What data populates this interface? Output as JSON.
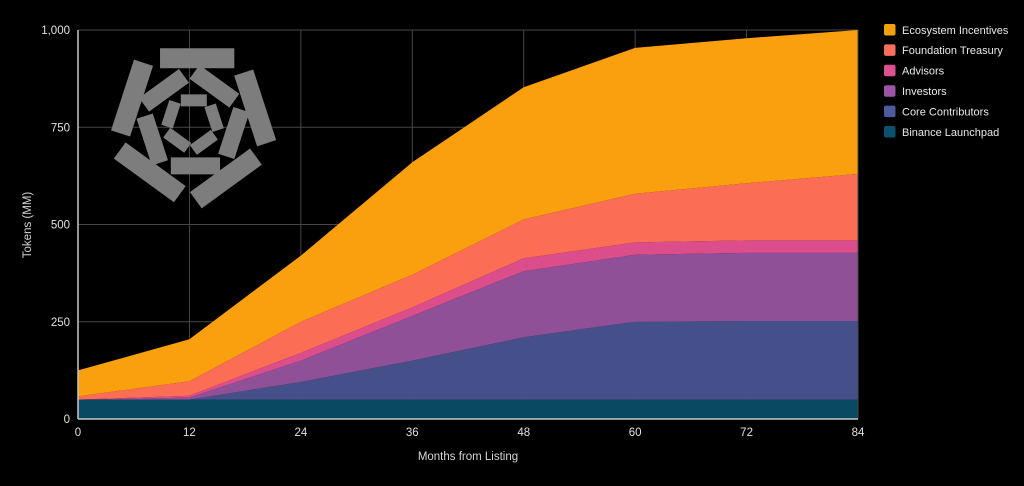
{
  "background": "#000000",
  "watermark": {
    "name": "pentagon-spiral-logo",
    "color": "#7d7d7d"
  },
  "chart_data": {
    "type": "area",
    "stacked": true,
    "title": "",
    "xlabel": "Months from Listing",
    "ylabel": "Tokens (MM)",
    "xlim": [
      0,
      84
    ],
    "ylim": [
      0,
      1000
    ],
    "grid": true,
    "legend_position": "top-right-outside",
    "x": [
      0,
      12,
      24,
      36,
      48,
      60,
      72,
      84
    ],
    "x_tick_labels": [
      "0",
      "12",
      "24",
      "36",
      "48",
      "60",
      "72",
      "84"
    ],
    "y_ticks": [
      0,
      250,
      500,
      750,
      1000
    ],
    "y_tick_labels": [
      "0",
      "250",
      "500",
      "750",
      "1,000"
    ],
    "series": [
      {
        "name": "Binance Launchpad",
        "color": "#094962",
        "swatch": "#0e516f",
        "values": [
          50,
          50,
          50,
          50,
          50,
          50,
          50,
          50
        ]
      },
      {
        "name": "Core Contributors",
        "color": "#45508a",
        "swatch": "#4d5b9e",
        "values": [
          0,
          0,
          45,
          100,
          160,
          200,
          202,
          202
        ]
      },
      {
        "name": "Investors",
        "color": "#8f5098",
        "swatch": "#9a55a5",
        "values": [
          0,
          5,
          55,
          115,
          170,
          172,
          175,
          175
        ]
      },
      {
        "name": "Advisors",
        "color": "#db4d8b",
        "swatch": "#de5190",
        "values": [
          0,
          5,
          20,
          22,
          33,
          32,
          32,
          32
        ]
      },
      {
        "name": "Foundation Treasury",
        "color": "#fb6e55",
        "swatch": "#f8705c",
        "values": [
          8,
          37,
          80,
          84,
          100,
          125,
          147,
          171
        ]
      },
      {
        "name": "Ecosystem Incentives",
        "color": "#faa00f",
        "swatch": "#f2a10d",
        "values": [
          67,
          108,
          170,
          289,
          340,
          375,
          373,
          370
        ]
      }
    ],
    "legend_order_top_to_bottom": [
      "Ecosystem Incentives",
      "Foundation Treasury",
      "Advisors",
      "Investors",
      "Core Contributors",
      "Binance Launchpad"
    ],
    "totals_by_month": [
      125,
      205,
      420,
      660,
      853,
      954,
      979,
      1000
    ]
  },
  "styles": {
    "grid_color": "#474747",
    "axis_color": "#c8c8c8",
    "tick_text_color": "#e0e0e0",
    "axis_title_color": "#d6d6d6",
    "legend_text_color": "#e8e8e8"
  }
}
